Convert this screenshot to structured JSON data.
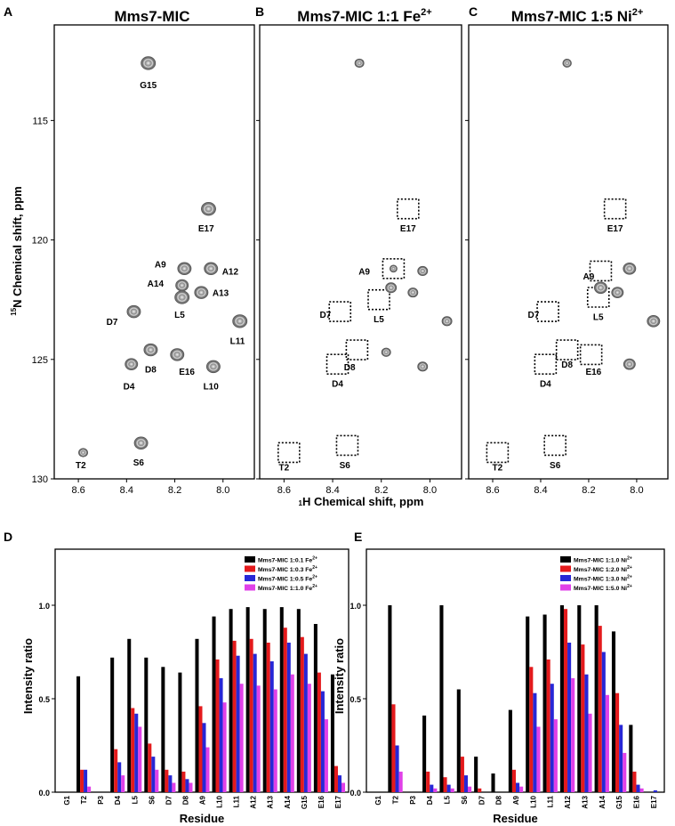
{
  "nmr": {
    "panels": [
      {
        "letter": "A",
        "title": "Mms7-MIC",
        "peaks": [
          {
            "label": "G15",
            "x": 8.31,
            "y": 112.6,
            "size": 1.0
          },
          {
            "label": "E17",
            "x": 8.06,
            "y": 118.7,
            "size": 1.0
          },
          {
            "label": "A9",
            "x": 8.16,
            "y": 121.2,
            "size": 0.9
          },
          {
            "label": "A12",
            "x": 8.05,
            "y": 121.2,
            "size": 0.9
          },
          {
            "label": "A14",
            "x": 8.17,
            "y": 121.9,
            "size": 0.8
          },
          {
            "label": "A13",
            "x": 8.09,
            "y": 122.2,
            "size": 0.9
          },
          {
            "label": "L5",
            "x": 8.17,
            "y": 122.4,
            "size": 1.0
          },
          {
            "label": "D7",
            "x": 8.37,
            "y": 123.0,
            "size": 0.9
          },
          {
            "label": "L11",
            "x": 7.93,
            "y": 123.4,
            "size": 1.0
          },
          {
            "label": "D8",
            "x": 8.3,
            "y": 124.6,
            "size": 0.9
          },
          {
            "label": "E16",
            "x": 8.19,
            "y": 124.8,
            "size": 0.9
          },
          {
            "label": "D4",
            "x": 8.38,
            "y": 125.2,
            "size": 0.8
          },
          {
            "label": "L10",
            "x": 8.04,
            "y": 125.3,
            "size": 0.9
          },
          {
            "label": "T2",
            "x": 8.58,
            "y": 128.9,
            "size": 0.4
          },
          {
            "label": "S6",
            "x": 8.34,
            "y": 128.5,
            "size": 0.9
          }
        ],
        "labels": [
          {
            "text": "G15",
            "x": 8.31,
            "y": 113.5
          },
          {
            "text": "E17",
            "x": 8.07,
            "y": 119.5
          },
          {
            "text": "A9",
            "x": 8.26,
            "y": 121.0
          },
          {
            "text": "A12",
            "x": 7.97,
            "y": 121.3
          },
          {
            "text": "A14",
            "x": 8.28,
            "y": 121.8
          },
          {
            "text": "A13",
            "x": 8.01,
            "y": 122.2
          },
          {
            "text": "L5",
            "x": 8.18,
            "y": 123.1
          },
          {
            "text": "D7",
            "x": 8.46,
            "y": 123.4
          },
          {
            "text": "L11",
            "x": 7.94,
            "y": 124.2
          },
          {
            "text": "D8",
            "x": 8.3,
            "y": 125.4
          },
          {
            "text": "E16",
            "x": 8.15,
            "y": 125.5
          },
          {
            "text": "D4",
            "x": 8.39,
            "y": 126.1
          },
          {
            "text": "L10",
            "x": 8.05,
            "y": 126.1
          },
          {
            "text": "T2",
            "x": 8.59,
            "y": 129.4
          },
          {
            "text": "S6",
            "x": 8.35,
            "y": 129.3
          }
        ],
        "boxes": []
      },
      {
        "letter": "B",
        "title": "Mms7-MIC 1:1 Fe",
        "title_sup": "2+",
        "peaks": [
          {
            "label": "",
            "x": 8.29,
            "y": 112.6,
            "size": 0.4
          },
          {
            "label": "A9",
            "x": 8.15,
            "y": 121.2,
            "size": 0.2
          },
          {
            "label": "",
            "x": 8.03,
            "y": 121.3,
            "size": 0.5
          },
          {
            "label": "",
            "x": 8.16,
            "y": 122.0,
            "size": 0.6
          },
          {
            "label": "",
            "x": 8.07,
            "y": 122.2,
            "size": 0.5
          },
          {
            "label": "",
            "x": 7.93,
            "y": 123.4,
            "size": 0.5
          },
          {
            "label": "",
            "x": 8.18,
            "y": 124.7,
            "size": 0.4
          },
          {
            "label": "",
            "x": 8.03,
            "y": 125.3,
            "size": 0.5
          }
        ],
        "labels": [
          {
            "text": "E17",
            "x": 8.09,
            "y": 119.5
          },
          {
            "text": "A9",
            "x": 8.27,
            "y": 121.3
          },
          {
            "text": "D7",
            "x": 8.43,
            "y": 123.1
          },
          {
            "text": "L5",
            "x": 8.21,
            "y": 123.3
          },
          {
            "text": "D8",
            "x": 8.33,
            "y": 125.3
          },
          {
            "text": "D4",
            "x": 8.38,
            "y": 126.0
          },
          {
            "text": "T2",
            "x": 8.6,
            "y": 129.5
          },
          {
            "text": "S6",
            "x": 8.35,
            "y": 129.4
          }
        ],
        "boxes": [
          {
            "x": 8.09,
            "y": 118.7
          },
          {
            "x": 8.15,
            "y": 121.2
          },
          {
            "x": 8.37,
            "y": 123.0
          },
          {
            "x": 8.21,
            "y": 122.5
          },
          {
            "x": 8.3,
            "y": 124.6
          },
          {
            "x": 8.38,
            "y": 125.2
          },
          {
            "x": 8.58,
            "y": 128.9
          },
          {
            "x": 8.34,
            "y": 128.6
          }
        ]
      },
      {
        "letter": "C",
        "title": "Mms7-MIC 1:5 Ni",
        "title_sup": "2+",
        "peaks": [
          {
            "label": "",
            "x": 8.29,
            "y": 112.6,
            "size": 0.35
          },
          {
            "label": "",
            "x": 8.03,
            "y": 121.2,
            "size": 0.8
          },
          {
            "label": "",
            "x": 8.15,
            "y": 122.0,
            "size": 0.8
          },
          {
            "label": "",
            "x": 8.08,
            "y": 122.2,
            "size": 0.7
          },
          {
            "label": "",
            "x": 7.93,
            "y": 123.4,
            "size": 0.8
          },
          {
            "label": "",
            "x": 8.03,
            "y": 125.2,
            "size": 0.7
          }
        ],
        "labels": [
          {
            "text": "E17",
            "x": 8.09,
            "y": 119.5
          },
          {
            "text": "A9",
            "x": 8.2,
            "y": 121.5
          },
          {
            "text": "D7",
            "x": 8.43,
            "y": 123.1
          },
          {
            "text": "L5",
            "x": 8.16,
            "y": 123.2
          },
          {
            "text": "D8",
            "x": 8.29,
            "y": 125.2
          },
          {
            "text": "E16",
            "x": 8.18,
            "y": 125.5
          },
          {
            "text": "D4",
            "x": 8.38,
            "y": 126.0
          },
          {
            "text": "T2",
            "x": 8.58,
            "y": 129.5
          },
          {
            "text": "S6",
            "x": 8.34,
            "y": 129.4
          }
        ],
        "boxes": [
          {
            "x": 8.09,
            "y": 118.7
          },
          {
            "x": 8.15,
            "y": 121.3
          },
          {
            "x": 8.37,
            "y": 123.0
          },
          {
            "x": 8.16,
            "y": 122.4
          },
          {
            "x": 8.29,
            "y": 124.6
          },
          {
            "x": 8.19,
            "y": 124.8
          },
          {
            "x": 8.38,
            "y": 125.2
          },
          {
            "x": 8.58,
            "y": 128.9
          },
          {
            "x": 8.34,
            "y": 128.6
          }
        ]
      }
    ],
    "x_ticks": [
      "8.6",
      "8.4",
      "8.2",
      "8.0"
    ],
    "x_tick_values": [
      8.6,
      8.4,
      8.2,
      8.0
    ],
    "x_range": [
      8.7,
      7.87
    ],
    "y_ticks": [
      "115",
      "120",
      "125",
      "130"
    ],
    "y_tick_values": [
      115,
      120,
      125,
      130
    ],
    "y_range": [
      111.0,
      130.0
    ],
    "xlabel_sup": "1",
    "xlabel": "H Chemical shift, ppm",
    "ylabel_sup": "15",
    "ylabel": "N Chemical shift, ppm"
  },
  "chart_data": [
    {
      "type": "bar",
      "panel": "D",
      "xlabel": "Residue",
      "ylabel": "Intensity ratio",
      "ylim": [
        0,
        1.3
      ],
      "yticks": [
        "0.0",
        "0.5",
        "1.0"
      ],
      "categories": [
        "G1",
        "T2",
        "P3",
        "D4",
        "L5",
        "S6",
        "D7",
        "D8",
        "A9",
        "L10",
        "L11",
        "A12",
        "A13",
        "A14",
        "G15",
        "E16",
        "E17"
      ],
      "series": [
        {
          "name": "Mms7-MIC 1:0.1 Fe",
          "sup": "2+",
          "color": "#000000",
          "values": [
            0,
            0.62,
            0,
            0.72,
            0.82,
            0.72,
            0.67,
            0.64,
            0.82,
            0.94,
            0.98,
            0.99,
            0.98,
            0.99,
            0.98,
            0.9,
            0.63
          ]
        },
        {
          "name": "Mms7-MIC 1:0.3 Fe",
          "sup": "2+",
          "color": "#e41a1c",
          "values": [
            0,
            0.12,
            0,
            0.23,
            0.45,
            0.26,
            0.12,
            0.11,
            0.46,
            0.71,
            0.81,
            0.82,
            0.8,
            0.88,
            0.83,
            0.64,
            0.14
          ]
        },
        {
          "name": "Mms7-MIC 1:0.5 Fe",
          "sup": "2+",
          "color": "#2727d6",
          "values": [
            0,
            0.12,
            0,
            0.16,
            0.42,
            0.19,
            0.09,
            0.07,
            0.37,
            0.61,
            0.73,
            0.74,
            0.7,
            0.8,
            0.74,
            0.54,
            0.09
          ]
        },
        {
          "name": "Mms7-MIC 1:1.0 Fe",
          "sup": "2+",
          "color": "#e040e8",
          "values": [
            0,
            0.03,
            0,
            0.09,
            0.35,
            0.12,
            0.05,
            0.05,
            0.24,
            0.48,
            0.58,
            0.57,
            0.55,
            0.63,
            0.58,
            0.39,
            0.05
          ]
        }
      ]
    },
    {
      "type": "bar",
      "panel": "E",
      "xlabel": "Residue",
      "ylabel": "Intensity ratio",
      "ylim": [
        0,
        1.3
      ],
      "yticks": [
        "0.0",
        "0.5",
        "1.0"
      ],
      "categories": [
        "G1",
        "T2",
        "P3",
        "D4",
        "L5",
        "S6",
        "D7",
        "D8",
        "A9",
        "L10",
        "L11",
        "A12",
        "A13",
        "A14",
        "G15",
        "E16",
        "E17"
      ],
      "series": [
        {
          "name": "Mms7-MIC 1:1.0 Ni",
          "sup": "2+",
          "color": "#000000",
          "values": [
            0,
            1.0,
            0,
            0.41,
            1.0,
            0.55,
            0.19,
            0.1,
            0.44,
            0.94,
            0.95,
            1.0,
            1.0,
            1.0,
            0.86,
            0.36,
            0
          ]
        },
        {
          "name": "Mms7-MIC 1:2.0 Ni",
          "sup": "2+",
          "color": "#e41a1c",
          "values": [
            0,
            0.47,
            0,
            0.11,
            0.08,
            0.19,
            0.02,
            0,
            0.12,
            0.67,
            0.71,
            0.98,
            0.79,
            0.89,
            0.53,
            0.11,
            0
          ]
        },
        {
          "name": "Mms7-MIC 1:3.0 Ni",
          "sup": "2+",
          "color": "#2727d6",
          "values": [
            0,
            0.25,
            0,
            0.04,
            0.04,
            0.09,
            0,
            0,
            0.05,
            0.53,
            0.58,
            0.8,
            0.63,
            0.75,
            0.36,
            0.04,
            0.01
          ]
        },
        {
          "name": "Mms7-MIC 1:5.0 Ni",
          "sup": "2+",
          "color": "#e040e8",
          "values": [
            0,
            0.11,
            0,
            0.02,
            0.02,
            0.03,
            0,
            0,
            0.03,
            0.35,
            0.39,
            0.61,
            0.42,
            0.52,
            0.21,
            0.02,
            0
          ]
        }
      ]
    }
  ]
}
